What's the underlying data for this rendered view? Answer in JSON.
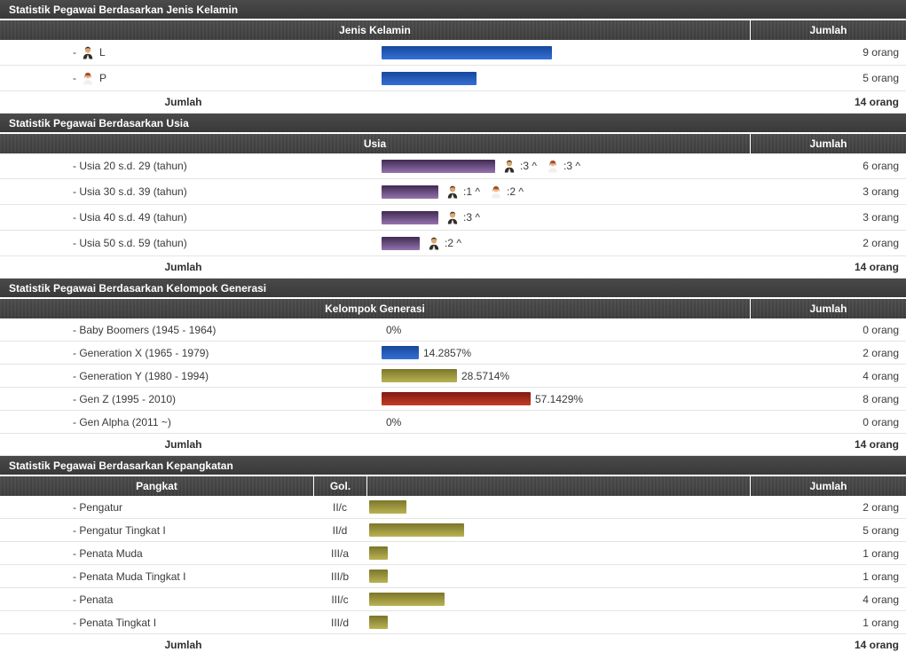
{
  "palette": {
    "header_bg": "#454545",
    "bar_blue": "#2b63c4",
    "bar_purple": "#6f4f87",
    "bar_gold": "#a29a41",
    "bar_red": "#a52c1b"
  },
  "sections": {
    "gender": {
      "title": "Statistik Pegawai Berdasarkan Jenis Kelamin",
      "col_header": "Jenis Kelamin",
      "jumlah_header": "Jumlah",
      "rows": [
        {
          "dash": "-",
          "label": "L",
          "icon": "male",
          "bar": 192,
          "value": "9 orang"
        },
        {
          "dash": "-",
          "label": "P",
          "icon": "female",
          "bar": 107,
          "value": "5 orang"
        }
      ],
      "footer_label": "Jumlah",
      "footer_value": "14 orang"
    },
    "usia": {
      "title": "Statistik Pegawai Berdasarkan Usia",
      "col_header": "Usia",
      "jumlah_header": "Jumlah",
      "rows": [
        {
          "label": "- Usia 20 s.d. 29 (tahun)",
          "bar": 128,
          "ann": [
            {
              "icon": "male",
              "text": ":3 ^"
            },
            {
              "icon": "female",
              "text": ":3 ^"
            }
          ],
          "value": "6 orang"
        },
        {
          "label": "- Usia 30 s.d. 39 (tahun)",
          "bar": 64,
          "ann": [
            {
              "icon": "male",
              "text": ":1 ^"
            },
            {
              "icon": "female",
              "text": ":2 ^"
            }
          ],
          "value": "3 orang"
        },
        {
          "label": "- Usia 40 s.d. 49 (tahun)",
          "bar": 64,
          "ann": [
            {
              "icon": "male",
              "text": ":3 ^"
            }
          ],
          "value": "3 orang"
        },
        {
          "label": "- Usia 50 s.d. 59 (tahun)",
          "bar": 43,
          "ann": [
            {
              "icon": "male",
              "text": ":2 ^"
            }
          ],
          "value": "2 orang"
        }
      ],
      "footer_label": "Jumlah",
      "footer_value": "14 orang"
    },
    "generasi": {
      "title": "Statistik Pegawai Berdasarkan Kelompok Generasi",
      "col_header": "Kelompok Generasi",
      "jumlah_header": "Jumlah",
      "rows": [
        {
          "label": "- Baby Boomers (1945 - 1964)",
          "bar": 0,
          "color": "none",
          "pct": "0%",
          "value": "0 orang"
        },
        {
          "label": "- Generation X (1965 - 1979)",
          "bar": 42,
          "color": "blue",
          "pct": "14.2857%",
          "value": "2 orang"
        },
        {
          "label": "- Generation Y (1980 - 1994)",
          "bar": 85,
          "color": "gold",
          "pct": "28.5714%",
          "value": "4 orang"
        },
        {
          "label": "- Gen Z (1995 - 2010)",
          "bar": 168,
          "color": "red",
          "pct": "57.1429%",
          "value": "8 orang"
        },
        {
          "label": "- Gen Alpha (2011 ~)",
          "bar": 0,
          "color": "none",
          "pct": "0%",
          "value": "0 orang"
        }
      ],
      "footer_label": "Jumlah",
      "footer_value": "14 orang"
    },
    "kepangkatan": {
      "title": "Statistik Pegawai Berdasarkan Kepangkatan",
      "col_header_pangkat": "Pangkat",
      "col_header_gol": "Gol.",
      "jumlah_header": "Jumlah",
      "rows": [
        {
          "label": "- Pengatur",
          "gol": "II/c",
          "bar": 42,
          "value": "2 orang"
        },
        {
          "label": "- Pengatur Tingkat I",
          "gol": "II/d",
          "bar": 107,
          "value": "5 orang"
        },
        {
          "label": "- Penata Muda",
          "gol": "III/a",
          "bar": 21,
          "value": "1 orang"
        },
        {
          "label": "- Penata Muda Tingkat I",
          "gol": "III/b",
          "bar": 21,
          "value": "1 orang"
        },
        {
          "label": "- Penata",
          "gol": "III/c",
          "bar": 85,
          "value": "4 orang"
        },
        {
          "label": "- Penata Tingkat I",
          "gol": "III/d",
          "bar": 21,
          "value": "1 orang"
        }
      ],
      "footer_label": "Jumlah",
      "footer_value": "14 orang"
    }
  }
}
